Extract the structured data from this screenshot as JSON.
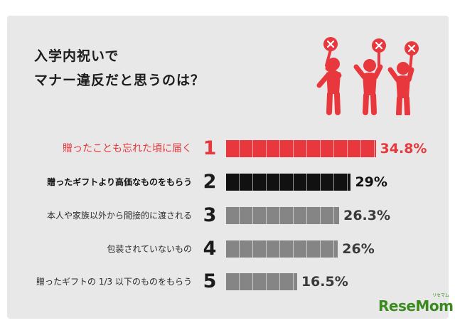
{
  "title_lines": [
    "入学内祝いで",
    "マナー違反だと思うのは？"
  ],
  "icon": "three-people-with-x-signs-icon",
  "colors": {
    "highlight": "#e8383d",
    "dark": "#111111",
    "gray": "#858585"
  },
  "chart_data": {
    "type": "bar",
    "orientation": "horizontal",
    "title": "入学内祝いでマナー違反だと思うのは？",
    "xlim": [
      0,
      40
    ],
    "ranks": [
      "1",
      "2",
      "3",
      "4",
      "5"
    ],
    "categories": [
      "贈ったことも忘れた頃に届く",
      "贈ったギフトより高価なものをもらう",
      "本人や家族以外から間接的に渡される",
      "包装されていないもの",
      "贈ったギフトの 1/3 以下のものをもらう"
    ],
    "values": [
      34.8,
      29,
      26.3,
      26,
      16.5
    ],
    "value_labels": [
      "34.8%",
      "29%",
      "26.3%",
      "26%",
      "16.5%"
    ]
  },
  "logo": {
    "text": "ReseMom",
    "sub": "リセマム"
  }
}
